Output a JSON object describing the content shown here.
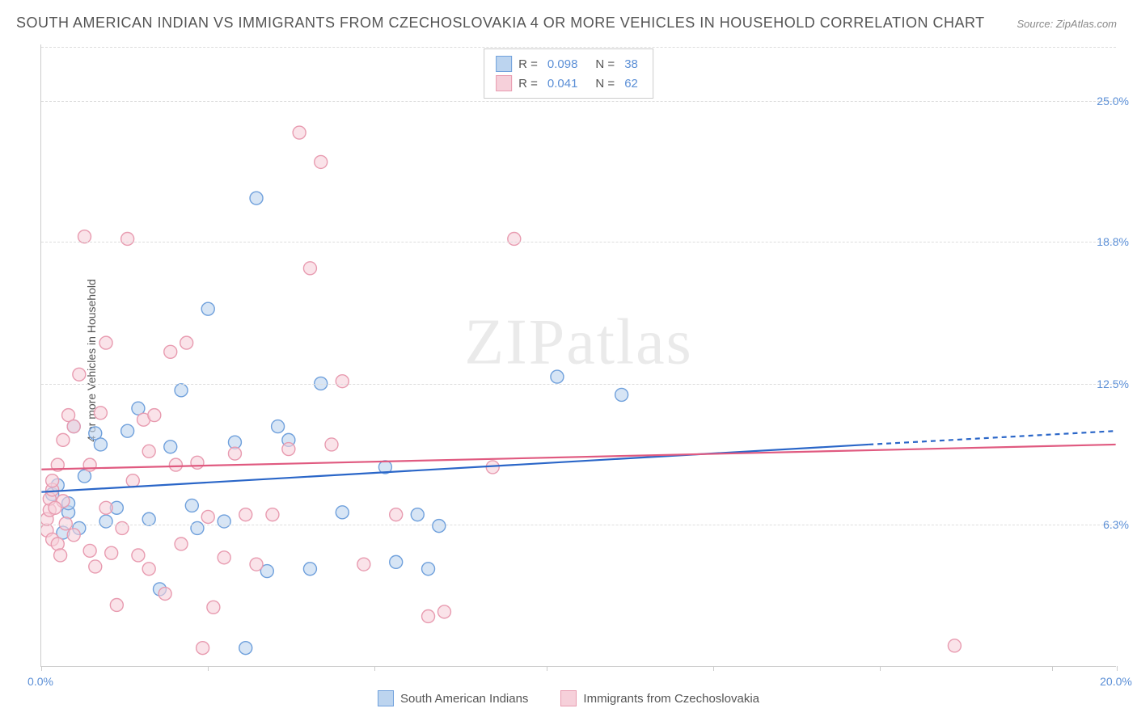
{
  "title": "SOUTH AMERICAN INDIAN VS IMMIGRANTS FROM CZECHOSLOVAKIA 4 OR MORE VEHICLES IN HOUSEHOLD CORRELATION CHART",
  "source": "Source: ZipAtlas.com",
  "watermark": "ZIPatlas",
  "y_axis_label": "4 or more Vehicles in Household",
  "chart": {
    "type": "scatter",
    "xlim": [
      0,
      20
    ],
    "ylim": [
      0,
      27.5
    ],
    "x_ticks_visible": [
      0,
      3.1,
      6.2,
      9.4,
      12.5,
      15.6,
      18.8,
      20
    ],
    "x_tick_labels": {
      "0": "0.0%",
      "20": "20.0%"
    },
    "y_ticks": [
      6.3,
      12.5,
      18.8,
      25.0
    ],
    "y_tick_labels": [
      "6.3%",
      "12.5%",
      "18.8%",
      "25.0%"
    ],
    "background": "#ffffff",
    "grid_color": "#dddddd",
    "axis_color": "#cccccc",
    "label_color": "#5b8fd6",
    "title_color": "#555555",
    "marker_radius": 8,
    "marker_stroke_width": 1.4,
    "marker_fill_opacity": 0.25,
    "trend_line_width": 2.2,
    "series": [
      {
        "name": "South American Indians",
        "color_stroke": "#6fa0dc",
        "color_fill": "#bcd4ef",
        "trend_color": "#2a66c8",
        "R": 0.098,
        "N": 38,
        "trend_start": [
          0,
          7.7
        ],
        "trend_end_solid": [
          15.4,
          9.8
        ],
        "trend_end_dashed": [
          20,
          10.4
        ],
        "points": [
          [
            0.2,
            7.6
          ],
          [
            0.3,
            8.0
          ],
          [
            0.4,
            5.9
          ],
          [
            0.5,
            6.8
          ],
          [
            0.6,
            10.6
          ],
          [
            0.7,
            6.1
          ],
          [
            0.8,
            8.4
          ],
          [
            1.0,
            10.3
          ],
          [
            1.1,
            9.8
          ],
          [
            1.2,
            6.4
          ],
          [
            1.4,
            7.0
          ],
          [
            1.6,
            10.4
          ],
          [
            1.8,
            11.4
          ],
          [
            2.0,
            6.5
          ],
          [
            2.2,
            3.4
          ],
          [
            2.4,
            9.7
          ],
          [
            2.6,
            12.2
          ],
          [
            2.8,
            7.1
          ],
          [
            2.9,
            6.1
          ],
          [
            3.1,
            15.8
          ],
          [
            3.4,
            6.4
          ],
          [
            3.6,
            9.9
          ],
          [
            3.8,
            0.8
          ],
          [
            4.0,
            20.7
          ],
          [
            4.2,
            4.2
          ],
          [
            4.4,
            10.6
          ],
          [
            4.6,
            10.0
          ],
          [
            5.0,
            4.3
          ],
          [
            5.2,
            12.5
          ],
          [
            5.6,
            6.8
          ],
          [
            6.4,
            8.8
          ],
          [
            6.6,
            4.6
          ],
          [
            7.0,
            6.7
          ],
          [
            7.2,
            4.3
          ],
          [
            7.4,
            6.2
          ],
          [
            9.6,
            12.8
          ],
          [
            10.8,
            12.0
          ],
          [
            0.5,
            7.2
          ]
        ]
      },
      {
        "name": "Immigrants from Czechoslovakia",
        "color_stroke": "#e89bb0",
        "color_fill": "#f6d0da",
        "trend_color": "#e05a80",
        "R": 0.041,
        "N": 62,
        "trend_start": [
          0,
          8.7
        ],
        "trend_end_solid": [
          20,
          9.8
        ],
        "trend_end_dashed": [
          20,
          9.8
        ],
        "points": [
          [
            0.1,
            6.0
          ],
          [
            0.1,
            6.5
          ],
          [
            0.15,
            6.9
          ],
          [
            0.15,
            7.4
          ],
          [
            0.2,
            5.6
          ],
          [
            0.2,
            7.8
          ],
          [
            0.2,
            8.2
          ],
          [
            0.3,
            5.4
          ],
          [
            0.3,
            8.9
          ],
          [
            0.35,
            4.9
          ],
          [
            0.4,
            7.3
          ],
          [
            0.4,
            10.0
          ],
          [
            0.45,
            6.3
          ],
          [
            0.5,
            11.1
          ],
          [
            0.6,
            5.8
          ],
          [
            0.6,
            10.6
          ],
          [
            0.7,
            12.9
          ],
          [
            0.8,
            19.0
          ],
          [
            0.9,
            5.1
          ],
          [
            0.9,
            8.9
          ],
          [
            1.0,
            4.4
          ],
          [
            1.1,
            11.2
          ],
          [
            1.2,
            7.0
          ],
          [
            1.2,
            14.3
          ],
          [
            1.3,
            5.0
          ],
          [
            1.4,
            2.7
          ],
          [
            1.5,
            6.1
          ],
          [
            1.6,
            18.9
          ],
          [
            1.7,
            8.2
          ],
          [
            1.8,
            4.9
          ],
          [
            1.9,
            10.9
          ],
          [
            2.0,
            4.3
          ],
          [
            2.0,
            9.5
          ],
          [
            2.1,
            11.1
          ],
          [
            2.3,
            3.2
          ],
          [
            2.4,
            13.9
          ],
          [
            2.5,
            8.9
          ],
          [
            2.6,
            5.4
          ],
          [
            2.7,
            14.3
          ],
          [
            2.9,
            9.0
          ],
          [
            3.0,
            0.8
          ],
          [
            3.1,
            6.6
          ],
          [
            3.2,
            2.6
          ],
          [
            3.4,
            4.8
          ],
          [
            3.6,
            9.4
          ],
          [
            3.8,
            6.7
          ],
          [
            4.0,
            4.5
          ],
          [
            4.3,
            6.7
          ],
          [
            4.6,
            9.6
          ],
          [
            4.8,
            23.6
          ],
          [
            5.0,
            17.6
          ],
          [
            5.2,
            22.3
          ],
          [
            5.4,
            9.8
          ],
          [
            5.6,
            12.6
          ],
          [
            6.0,
            4.5
          ],
          [
            6.6,
            6.7
          ],
          [
            7.2,
            2.2
          ],
          [
            7.5,
            2.4
          ],
          [
            8.4,
            8.8
          ],
          [
            8.8,
            18.9
          ],
          [
            17.0,
            0.9
          ],
          [
            0.25,
            7.0
          ]
        ]
      }
    ]
  },
  "legend_top_labels": {
    "R": "R =",
    "N": "N ="
  },
  "legend_bottom": [
    {
      "label": "South American Indians",
      "swatch_fill": "#bcd4ef",
      "swatch_border": "#6fa0dc"
    },
    {
      "label": "Immigrants from Czechoslovakia",
      "swatch_fill": "#f6d0da",
      "swatch_border": "#e89bb0"
    }
  ]
}
